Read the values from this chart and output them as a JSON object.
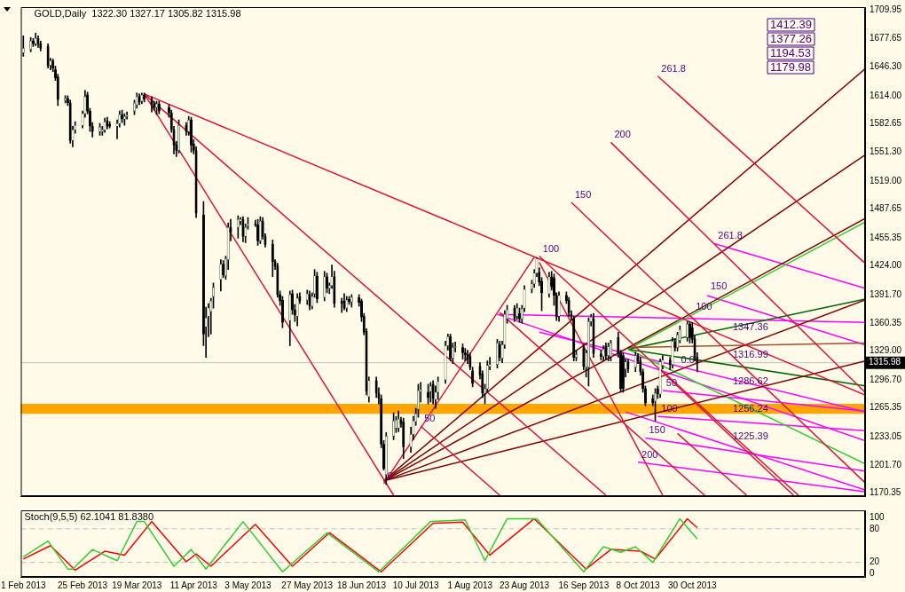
{
  "chart_data": [
    {
      "type": "candlestick",
      "title": "GOLD,Daily  1322.30 1327.17 1305.82 1315.98",
      "tick_labels": "y",
      "xlim": [
        "2013-01-31",
        "2014-01-08"
      ],
      "ylim": [
        1167,
        1713
      ],
      "yticks": [
        1709.95,
        1677.65,
        {
          "value": 1646.3,
          "label": "1646.30"
        },
        {
          "value": 1614,
          "label": "1614.00"
        },
        1582.65,
        {
          "value": 1551.3,
          "label": "1551.30"
        },
        {
          "value": 1519,
          "label": "1519.00"
        },
        1487.65,
        1455.35,
        {
          "value": 1424,
          "label": "1424.00"
        },
        {
          "value": 1391.7,
          "label": "1391.70"
        },
        1360.35,
        {
          "value": 1329,
          "label": "1329.00"
        },
        {
          "value": 1296.7,
          "label": "1296.70"
        },
        1265.35,
        1233.05,
        {
          "value": 1201.7,
          "label": "1201.70"
        },
        1170.35
      ],
      "x": [
        "2013-02-01",
        "2013-02-04",
        "2013-02-05",
        "2013-02-06",
        "2013-02-07",
        "2013-02-08",
        "2013-02-11",
        "2013-02-12",
        "2013-02-13",
        "2013-02-14",
        "2013-02-15",
        "2013-02-18",
        "2013-02-19",
        "2013-02-20",
        "2013-02-21",
        "2013-02-22",
        "2013-02-25",
        "2013-02-26",
        "2013-02-27",
        "2013-02-28",
        "2013-03-01",
        "2013-03-04",
        "2013-03-05",
        "2013-03-06",
        "2013-03-07",
        "2013-03-08",
        "2013-03-11",
        "2013-03-12",
        "2013-03-13",
        "2013-03-14",
        "2013-03-15",
        "2013-03-18",
        "2013-03-19",
        "2013-03-20",
        "2013-03-21",
        "2013-03-22",
        "2013-03-25",
        "2013-03-26",
        "2013-03-27",
        "2013-03-28",
        "2013-04-01",
        "2013-04-02",
        "2013-04-03",
        "2013-04-04",
        "2013-04-05",
        "2013-04-08",
        "2013-04-09",
        "2013-04-10",
        "2013-04-11",
        "2013-04-12",
        "2013-04-15",
        "2013-04-16",
        "2013-04-17",
        "2013-04-18",
        "2013-04-19",
        "2013-04-22",
        "2013-04-23",
        "2013-04-24",
        "2013-04-25",
        "2013-04-26",
        "2013-04-29",
        "2013-04-30",
        "2013-05-01",
        "2013-05-02",
        "2013-05-03",
        "2013-05-06",
        "2013-05-07",
        "2013-05-08",
        "2013-05-09",
        "2013-05-10",
        "2013-05-13",
        "2013-05-14",
        "2013-05-15",
        "2013-05-16",
        "2013-05-17",
        "2013-05-20",
        "2013-05-21",
        "2013-05-22",
        "2013-05-23",
        "2013-05-24",
        "2013-05-27",
        "2013-05-28",
        "2013-05-29",
        "2013-05-30",
        "2013-05-31",
        "2013-06-03",
        "2013-06-04",
        "2013-06-05",
        "2013-06-06",
        "2013-06-07",
        "2013-06-10",
        "2013-06-11",
        "2013-06-12",
        "2013-06-13",
        "2013-06-14",
        "2013-06-17",
        "2013-06-18",
        "2013-06-19",
        "2013-06-20",
        "2013-06-21",
        "2013-06-24",
        "2013-06-25",
        "2013-06-26",
        "2013-06-27",
        "2013-06-28",
        "2013-07-01",
        "2013-07-02",
        "2013-07-03",
        "2013-07-04",
        "2013-07-05",
        "2013-07-08",
        "2013-07-09",
        "2013-07-10",
        "2013-07-11",
        "2013-07-12",
        "2013-07-15",
        "2013-07-16",
        "2013-07-17",
        "2013-07-18",
        "2013-07-19",
        "2013-07-22",
        "2013-07-23",
        "2013-07-24",
        "2013-07-25",
        "2013-07-26",
        "2013-07-29",
        "2013-07-30",
        "2013-07-31",
        "2013-08-01",
        "2013-08-02",
        "2013-08-05",
        "2013-08-06",
        "2013-08-07",
        "2013-08-08",
        "2013-08-09",
        "2013-08-12",
        "2013-08-13",
        "2013-08-14",
        "2013-08-15",
        "2013-08-16",
        "2013-08-19",
        "2013-08-20",
        "2013-08-21",
        "2013-08-22",
        "2013-08-23",
        "2013-08-26",
        "2013-08-27",
        "2013-08-28",
        "2013-08-29",
        "2013-08-30",
        "2013-09-02",
        "2013-09-03",
        "2013-09-04",
        "2013-09-05",
        "2013-09-06",
        "2013-09-09",
        "2013-09-10",
        "2013-09-11",
        "2013-09-12",
        "2013-09-13",
        "2013-09-16",
        "2013-09-17",
        "2013-09-18",
        "2013-09-19",
        "2013-09-20",
        "2013-09-23",
        "2013-09-24",
        "2013-09-25",
        "2013-09-26",
        "2013-09-27",
        "2013-09-30",
        "2013-10-01",
        "2013-10-02",
        "2013-10-03",
        "2013-10-04",
        "2013-10-07",
        "2013-10-08",
        "2013-10-09",
        "2013-10-10",
        "2013-10-11",
        "2013-10-14",
        "2013-10-15",
        "2013-10-16",
        "2013-10-17",
        "2013-10-18",
        "2013-10-21",
        "2013-10-22",
        "2013-10-23",
        "2013-10-24",
        "2013-10-25",
        "2013-10-28",
        "2013-10-29",
        "2013-10-30",
        "2013-10-31",
        "2013-11-01"
      ],
      "ohlc": [
        [
          1662,
          1681,
          1658,
          1667
        ],
        [
          1666,
          1679,
          1663,
          1675
        ],
        [
          1675,
          1678,
          1669,
          1672
        ],
        [
          1672,
          1684,
          1670,
          1678
        ],
        [
          1678,
          1681,
          1668,
          1672
        ],
        [
          1672,
          1675,
          1664,
          1667
        ],
        [
          1669,
          1672,
          1645,
          1648
        ],
        [
          1648,
          1656,
          1643,
          1653
        ],
        [
          1653,
          1655,
          1641,
          1645
        ],
        [
          1643,
          1647,
          1631,
          1634
        ],
        [
          1635,
          1638,
          1603,
          1610
        ],
        [
          1609,
          1614,
          1606,
          1611
        ],
        [
          1611,
          1614,
          1603,
          1606
        ],
        [
          1606,
          1609,
          1561,
          1564
        ],
        [
          1564,
          1580,
          1557,
          1576
        ],
        [
          1576,
          1585,
          1572,
          1581
        ],
        [
          1581,
          1597,
          1578,
          1594
        ],
        [
          1594,
          1620,
          1590,
          1613
        ],
        [
          1615,
          1618,
          1594,
          1597
        ],
        [
          1597,
          1600,
          1574,
          1580
        ],
        [
          1580,
          1584,
          1568,
          1574
        ],
        [
          1574,
          1583,
          1570,
          1579
        ],
        [
          1574,
          1580,
          1570,
          1576
        ],
        [
          1576,
          1589,
          1573,
          1585
        ],
        [
          1586,
          1590,
          1577,
          1580
        ],
        [
          1582,
          1585,
          1578,
          1580
        ],
        [
          1580,
          1587,
          1566,
          1583
        ],
        [
          1583,
          1597,
          1579,
          1593
        ],
        [
          1593,
          1598,
          1584,
          1588
        ],
        [
          1588,
          1594,
          1581,
          1591
        ],
        [
          1591,
          1596,
          1588,
          1592
        ],
        [
          1597,
          1609,
          1593,
          1606
        ],
        [
          1604,
          1617,
          1600,
          1613
        ],
        [
          1613,
          1616,
          1604,
          1607
        ],
        [
          1608,
          1617,
          1605,
          1615
        ],
        [
          1615,
          1617,
          1607,
          1610
        ],
        [
          1610,
          1613,
          1596,
          1605
        ],
        [
          1605,
          1608,
          1598,
          1601
        ],
        [
          1601,
          1608,
          1593,
          1605
        ],
        [
          1605,
          1608,
          1594,
          1597
        ],
        [
          1601,
          1604,
          1590,
          1595
        ],
        [
          1595,
          1598,
          1573,
          1576
        ],
        [
          1576,
          1580,
          1549,
          1559
        ],
        [
          1559,
          1563,
          1546,
          1553
        ],
        [
          1553,
          1587,
          1550,
          1581
        ],
        [
          1581,
          1584,
          1570,
          1574
        ],
        [
          1574,
          1591,
          1570,
          1587
        ],
        [
          1587,
          1590,
          1551,
          1559
        ],
        [
          1560,
          1565,
          1549,
          1553
        ],
        [
          1553,
          1557,
          1478,
          1483
        ],
        [
          1481,
          1496,
          1335,
          1348
        ],
        [
          1356,
          1378,
          1322,
          1366
        ],
        [
          1368,
          1382,
          1345,
          1377
        ],
        [
          1373,
          1388,
          1348,
          1385
        ],
        [
          1390,
          1405,
          1377,
          1400
        ],
        [
          1409,
          1431,
          1396,
          1426
        ],
        [
          1426,
          1430,
          1411,
          1414
        ],
        [
          1413,
          1435,
          1409,
          1432
        ],
        [
          1431,
          1472,
          1420,
          1467
        ],
        [
          1467,
          1476,
          1452,
          1462
        ],
        [
          1467,
          1480,
          1455,
          1476
        ],
        [
          1474,
          1478,
          1470,
          1476
        ],
        [
          1476,
          1479,
          1451,
          1457
        ],
        [
          1457,
          1471,
          1450,
          1467
        ],
        [
          1469,
          1478,
          1465,
          1471
        ],
        [
          1471,
          1475,
          1468,
          1470
        ],
        [
          1470,
          1476,
          1447,
          1452
        ],
        [
          1452,
          1479,
          1449,
          1474
        ],
        [
          1474,
          1478,
          1454,
          1457
        ],
        [
          1457,
          1460,
          1445,
          1448
        ],
        [
          1448,
          1453,
          1412,
          1429
        ],
        [
          1429,
          1431,
          1420,
          1424
        ],
        [
          1424,
          1427,
          1389,
          1392
        ],
        [
          1392,
          1396,
          1380,
          1385
        ],
        [
          1386,
          1390,
          1355,
          1361
        ],
        [
          1363,
          1396,
          1335,
          1392
        ],
        [
          1393,
          1397,
          1370,
          1375
        ],
        [
          1375,
          1381,
          1362,
          1369
        ],
        [
          1368,
          1393,
          1357,
          1388
        ],
        [
          1390,
          1394,
          1382,
          1385
        ],
        [
          1386,
          1397,
          1381,
          1393
        ],
        [
          1392,
          1396,
          1375,
          1379
        ],
        [
          1379,
          1394,
          1376,
          1390
        ],
        [
          1393,
          1420,
          1389,
          1413
        ],
        [
          1413,
          1417,
          1383,
          1387
        ],
        [
          1389,
          1418,
          1385,
          1412
        ],
        [
          1412,
          1416,
          1394,
          1399
        ],
        [
          1399,
          1405,
          1393,
          1402
        ],
        [
          1402,
          1425,
          1399,
          1412
        ],
        [
          1412,
          1418,
          1378,
          1382
        ],
        [
          1385,
          1388,
          1372,
          1382
        ],
        [
          1385,
          1393,
          1375,
          1377
        ],
        [
          1377,
          1390,
          1373,
          1386
        ],
        [
          1387,
          1390,
          1381,
          1384
        ],
        [
          1384,
          1392,
          1378,
          1389
        ],
        [
          1389,
          1392,
          1379,
          1383
        ],
        [
          1385,
          1387,
          1362,
          1367
        ],
        [
          1368,
          1371,
          1347,
          1350
        ],
        [
          1351,
          1354,
          1280,
          1284
        ],
        [
          1278,
          1300,
          1272,
          1296
        ],
        [
          1296,
          1300,
          1277,
          1282
        ],
        [
          1282,
          1288,
          1270,
          1276
        ],
        [
          1276,
          1280,
          1221,
          1225
        ],
        [
          1225,
          1229,
          1196,
          1198
        ],
        [
          1191,
          1238,
          1180,
          1234
        ],
        [
          1234,
          1260,
          1230,
          1251
        ],
        [
          1243,
          1256,
          1238,
          1252
        ],
        [
          1243,
          1262,
          1239,
          1253
        ],
        [
          1252,
          1255,
          1244,
          1248
        ],
        [
          1250,
          1254,
          1209,
          1222
        ],
        [
          1222,
          1244,
          1216,
          1236
        ],
        [
          1236,
          1256,
          1230,
          1251
        ],
        [
          1250,
          1265,
          1246,
          1259
        ],
        [
          1264,
          1292,
          1255,
          1285
        ],
        [
          1284,
          1294,
          1272,
          1286
        ],
        [
          1283,
          1292,
          1270,
          1277
        ],
        [
          1284,
          1294,
          1272,
          1290
        ],
        [
          1292,
          1296,
          1270,
          1276
        ],
        [
          1275,
          1290,
          1265,
          1283
        ],
        [
          1283,
          1300,
          1275,
          1295
        ],
        [
          1297,
          1340,
          1293,
          1335
        ],
        [
          1335,
          1348,
          1330,
          1345
        ],
        [
          1345,
          1348,
          1318,
          1321
        ],
        [
          1321,
          1338,
          1315,
          1333
        ],
        [
          1333,
          1339,
          1328,
          1333
        ],
        [
          1333,
          1337,
          1320,
          1327
        ],
        [
          1327,
          1332,
          1318,
          1325
        ],
        [
          1325,
          1330,
          1315,
          1320
        ],
        [
          1323,
          1327,
          1308,
          1311
        ],
        [
          1307,
          1311,
          1289,
          1293
        ],
        [
          1312,
          1316,
          1298,
          1302
        ],
        [
          1304,
          1307,
          1277,
          1282
        ],
        [
          1282,
          1292,
          1270,
          1287
        ],
        [
          1287,
          1318,
          1283,
          1313
        ],
        [
          1312,
          1322,
          1308,
          1314
        ],
        [
          1314,
          1342,
          1310,
          1338
        ],
        [
          1336,
          1340,
          1318,
          1322
        ],
        [
          1321,
          1340,
          1316,
          1336
        ],
        [
          1336,
          1374,
          1332,
          1370
        ],
        [
          1365,
          1380,
          1360,
          1375
        ],
        [
          1377,
          1380,
          1362,
          1365
        ],
        [
          1368,
          1382,
          1364,
          1377
        ],
        [
          1371,
          1377,
          1361,
          1365
        ],
        [
          1365,
          1380,
          1360,
          1376
        ],
        [
          1377,
          1402,
          1373,
          1398
        ],
        [
          1398,
          1408,
          1394,
          1404
        ],
        [
          1404,
          1420,
          1400,
          1416
        ],
        [
          1416,
          1433,
          1412,
          1432
        ],
        [
          1417,
          1422,
          1402,
          1406
        ],
        [
          1407,
          1411,
          1374,
          1394
        ],
        [
          1393,
          1417,
          1389,
          1412
        ],
        [
          1412,
          1418,
          1397,
          1401
        ],
        [
          1411,
          1415,
          1380,
          1391
        ],
        [
          1391,
          1394,
          1363,
          1367
        ],
        [
          1368,
          1395,
          1362,
          1391
        ],
        [
          1391,
          1395,
          1382,
          1385
        ],
        [
          1386,
          1389,
          1368,
          1372
        ],
        [
          1370,
          1374,
          1364,
          1367
        ],
        [
          1365,
          1368,
          1318,
          1322
        ],
        [
          1322,
          1330,
          1318,
          1325
        ],
        [
          1333,
          1337,
          1308,
          1312
        ],
        [
          1311,
          1330,
          1300,
          1327
        ],
        [
          1311,
          1366,
          1290,
          1362
        ],
        [
          1362,
          1370,
          1357,
          1367
        ],
        [
          1365,
          1371,
          1322,
          1326
        ],
        [
          1326,
          1330,
          1319,
          1323
        ],
        [
          1323,
          1335,
          1318,
          1331
        ],
        [
          1335,
          1338,
          1320,
          1324
        ],
        [
          1324,
          1338,
          1318,
          1334
        ],
        [
          1323,
          1341,
          1318,
          1338
        ],
        [
          1344,
          1350,
          1322,
          1326
        ],
        [
          1327,
          1330,
          1283,
          1287
        ],
        [
          1324,
          1327,
          1283,
          1287
        ],
        [
          1309,
          1320,
          1300,
          1317
        ],
        [
          1317,
          1320,
          1305,
          1309
        ],
        [
          1311,
          1328,
          1306,
          1324
        ],
        [
          1322,
          1326,
          1315,
          1318
        ],
        [
          1318,
          1322,
          1302,
          1306
        ],
        [
          1306,
          1309,
          1283,
          1287
        ],
        [
          1287,
          1290,
          1268,
          1271
        ],
        [
          1276,
          1280,
          1268,
          1271
        ],
        [
          1273,
          1287,
          1251,
          1282
        ],
        [
          1287,
          1290,
          1276,
          1281
        ],
        [
          1281,
          1320,
          1277,
          1317
        ],
        [
          1313,
          1324,
          1309,
          1319
        ],
        [
          1319,
          1322,
          1308,
          1314
        ],
        [
          1314,
          1344,
          1310,
          1340
        ],
        [
          1339,
          1343,
          1329,
          1333
        ],
        [
          1333,
          1350,
          1329,
          1347
        ],
        [
          1341,
          1357,
          1338,
          1353
        ],
        [
          1344,
          1362,
          1340,
          1359
        ],
        [
          1359,
          1362,
          1338,
          1344
        ],
        [
          1355,
          1361,
          1338,
          1342
        ],
        [
          1342,
          1346,
          1318,
          1322
        ],
        [
          1322.3,
          1327.17,
          1305.82,
          1315.98
        ]
      ],
      "series": [
        {
          "type": "line",
          "color": "#dc143c",
          "x": [
            "2013-03-22",
            "2014-01-08"
          ],
          "values": [
            1616,
            1280
          ]
        },
        {
          "type": "line",
          "color": "#dc143c",
          "x": [
            "2013-03-22",
            "2013-07-01"
          ],
          "values": [
            1616,
            1168
          ]
        },
        {
          "type": "line",
          "color": "#dc143c",
          "x": [
            "2013-03-22",
            "2013-09-25"
          ],
          "values": [
            1616,
            1168
          ]
        },
        {
          "type": "line",
          "color": "#dc143c",
          "x": [
            "2013-06-27",
            "2013-08-27"
          ],
          "values": [
            1181,
            1434
          ]
        },
        {
          "type": "line",
          "color": "#dc143c",
          "x": [
            "2013-10-16",
            "2014-01-08"
          ],
          "values": [
            1636,
            1427
          ]
        },
        {
          "type": "line",
          "color": "#dc143c",
          "x": [
            "2013-09-27",
            "2014-01-08"
          ],
          "values": [
            1562,
            1283
          ]
        },
        {
          "type": "line",
          "color": "#dc143c",
          "x": [
            "2013-09-11",
            "2014-01-08"
          ],
          "values": [
            1495,
            1182
          ]
        },
        {
          "type": "line",
          "color": "#dc143c",
          "x": [
            "2013-08-29",
            "2013-12-10"
          ],
          "values": [
            1435,
            1168
          ]
        },
        {
          "type": "line",
          "color": "#dc143c",
          "x": [
            "2013-07-12",
            "2013-08-13"
          ],
          "values": [
            1245,
            1168
          ]
        },
        {
          "type": "line",
          "color": "#dc143c",
          "x": [
            "2013-08-13",
            "2013-11-04"
          ],
          "values": [
            1372,
            1168
          ]
        },
        {
          "type": "line",
          "color": "#dc143c",
          "x": [
            "2013-08-29",
            "2013-10-18"
          ],
          "values": [
            1428,
            1168
          ]
        },
        {
          "type": "line",
          "color": "#dc143c",
          "x": [
            "2013-10-17",
            "2013-12-12"
          ],
          "values": [
            1309,
            1168
          ]
        },
        {
          "type": "line",
          "color": "#dc143c",
          "x": [
            "2013-10-24",
            "2013-11-21"
          ],
          "values": [
            1237,
            1168
          ]
        },
        {
          "type": "line",
          "color": "#800000",
          "x": [
            "2013-06-27",
            "2014-01-08"
          ],
          "values": [
            1184,
            1644
          ]
        },
        {
          "type": "line",
          "color": "#800000",
          "x": [
            "2013-06-27",
            "2014-01-08"
          ],
          "values": [
            1184,
            1548
          ]
        },
        {
          "type": "line",
          "color": "#800000",
          "x": [
            "2013-06-27",
            "2014-01-08"
          ],
          "values": [
            1184,
            1477
          ]
        },
        {
          "type": "line",
          "color": "#800000",
          "x": [
            "2013-06-27",
            "2014-01-08"
          ],
          "values": [
            1184,
            1386
          ]
        },
        {
          "type": "line",
          "color": "#800000",
          "x": [
            "2013-06-27",
            "2014-01-08"
          ],
          "values": [
            1184,
            1318
          ]
        },
        {
          "type": "line",
          "color": "#a0522d",
          "x": [
            "2013-10-04",
            "2014-01-08"
          ],
          "values": [
            1333,
            1338
          ]
        },
        {
          "type": "line",
          "color": "#32cd32",
          "x": [
            "2013-10-04",
            "2014-01-08"
          ],
          "values": [
            1331,
            1473
          ]
        },
        {
          "type": "line",
          "color": "#006400",
          "x": [
            "2013-10-04",
            "2014-01-08"
          ],
          "values": [
            1331,
            1387
          ]
        },
        {
          "type": "line",
          "color": "#006400",
          "x": [
            "2013-10-04",
            "2014-01-08"
          ],
          "values": [
            1331,
            1290
          ]
        },
        {
          "type": "line",
          "color": "#32cd32",
          "x": [
            "2013-10-04",
            "2014-01-08"
          ],
          "values": [
            1331,
            1203
          ]
        },
        {
          "type": "line",
          "color": "#ff00ff",
          "x": [
            "2013-08-13",
            "2014-01-08"
          ],
          "values": [
            1370,
            1361
          ]
        },
        {
          "type": "line",
          "color": "#ff00ff",
          "x": [
            "2013-11-08",
            "2014-01-08"
          ],
          "values": [
            1449,
            1399
          ]
        },
        {
          "type": "line",
          "color": "#ff00ff",
          "x": [
            "2013-11-05",
            "2014-01-08"
          ],
          "values": [
            1391,
            1336
          ]
        },
        {
          "type": "line",
          "color": "#ff00ff",
          "x": [
            "2013-08-12",
            "2014-01-08"
          ],
          "values": [
            1370,
            1229
          ]
        },
        {
          "type": "line",
          "color": "#ff00ff",
          "x": [
            "2013-08-29",
            "2014-01-08"
          ],
          "values": [
            1350,
            1261
          ]
        },
        {
          "type": "line",
          "color": "#ff00ff",
          "x": [
            "2013-10-03",
            "2014-01-08"
          ],
          "values": [
            1261,
            1174
          ]
        },
        {
          "type": "line",
          "color": "#ff00ff",
          "x": [
            "2013-10-18",
            "2014-01-08"
          ],
          "values": [
            1285,
            1262
          ]
        },
        {
          "type": "line",
          "color": "#ff00ff",
          "x": [
            "2013-10-16",
            "2014-01-08"
          ],
          "values": [
            1256,
            1240
          ]
        },
        {
          "type": "line",
          "color": "#ff00ff",
          "x": [
            "2013-10-11",
            "2014-01-08"
          ],
          "values": [
            1232,
            1195
          ]
        },
        {
          "type": "line",
          "color": "#ff00ff",
          "x": [
            "2013-10-08",
            "2014-01-08"
          ],
          "values": [
            1205,
            1172
          ]
        }
      ],
      "ref_lines": [
        {
          "axis": "y",
          "value": 1315.98,
          "label": "1315.98",
          "color": "#c0c0c0"
        }
      ],
      "bands": [
        {
          "axis": "y",
          "from": 1259,
          "to": 1270,
          "color": "#ffa500"
        }
      ],
      "annotations": [
        "1412.39",
        "1377.26",
        {
          "text": "1347.36",
          "x": "2013-11-14",
          "y": 1347.36
        },
        {
          "text": "1316.99",
          "x": "2013-11-14",
          "y": 1316.99
        },
        {
          "text": "1286.62",
          "x": "2013-11-14",
          "y": 1286.62
        },
        {
          "text": "1256.24",
          "x": "2013-11-14",
          "y": 1256.24
        },
        {
          "text": "1225.39",
          "x": "2013-11-14",
          "y": 1225.39
        },
        "1194.53",
        "1179.98",
        {
          "text": "261.8",
          "x": "2013-10-16",
          "y": 1636
        },
        {
          "text": "200",
          "x": "2013-09-27",
          "y": 1562
        },
        {
          "text": "150",
          "x": "2013-09-11",
          "y": 1495
        },
        {
          "text": "100",
          "x": "2013-08-29",
          "y": 1435
        },
        {
          "text": "50",
          "x": "2013-07-12",
          "y": 1245
        },
        {
          "text": "0",
          "x": "2013-06-27",
          "y": 1181
        },
        {
          "text": "261.8",
          "x": "2013-11-08",
          "y": 1449
        },
        {
          "text": "150",
          "x": "2013-11-05",
          "y": 1393
        },
        {
          "text": "100",
          "x": "2013-10-30",
          "y": 1370
        },
        {
          "text": "0.0",
          "x": "2013-10-24",
          "y": 1311
        },
        {
          "text": "50",
          "x": "2013-10-18",
          "y": 1285
        },
        {
          "text": "100",
          "x": "2013-10-16",
          "y": 1256
        },
        {
          "text": "150",
          "x": "2013-10-11",
          "y": 1232
        },
        {
          "text": "200",
          "x": "2013-10-08",
          "y": 1205
        }
      ]
    },
    {
      "type": "line",
      "title": "Stoch(9,5,5) 62.1041 81.8380",
      "xlim": [
        "2013-01-31",
        "2014-01-08"
      ],
      "ylim": [
        -6,
        113
      ],
      "yticks": [
        0,
        20,
        80,
        100
      ],
      "xticks": [
        {
          "value": "2013-02-01",
          "label": "1 Feb 2013"
        },
        {
          "value": "2013-02-25",
          "label": "25 Feb 2013"
        },
        {
          "value": "2013-03-19",
          "label": "19 Mar 2013"
        },
        {
          "value": "2013-04-11",
          "label": "11 Apr 2013"
        },
        {
          "value": "2013-05-03",
          "label": "3 May 2013"
        },
        {
          "value": "2013-05-27",
          "label": "27 May 2013"
        },
        {
          "value": "2013-06-18",
          "label": "18 Jun 2013"
        },
        {
          "value": "2013-07-10",
          "label": "10 Jul 2013"
        },
        {
          "value": "2013-08-01",
          "label": "1 Aug 2013"
        },
        {
          "value": "2013-08-23",
          "label": "23 Aug 2013"
        },
        {
          "value": "2013-09-16",
          "label": "16 Sep 2013"
        },
        {
          "value": "2013-10-08",
          "label": "8 Oct 2013"
        },
        {
          "value": "2013-10-30",
          "label": "30 Oct 2013"
        }
      ],
      "series": [
        {
          "color": "#32cd32",
          "x": [
            "2013-02-01",
            "2013-02-11",
            "2013-02-19",
            "2013-02-21",
            "2013-03-01",
            "2013-03-11",
            "2013-03-19",
            "2013-03-22",
            "2013-04-03",
            "2013-04-10",
            "2013-04-16",
            "2013-05-01",
            "2013-05-17",
            "2013-06-04",
            "2013-06-25",
            "2013-07-16",
            "2013-07-30",
            "2013-08-07",
            "2013-08-16",
            "2013-08-28",
            "2013-09-16",
            "2013-09-24",
            "2013-10-01",
            "2013-10-07",
            "2013-10-14",
            "2013-10-25",
            "2013-11-01"
          ],
          "values": [
            30,
            58,
            8,
            8,
            43,
            23,
            93,
            93,
            13,
            43,
            8,
            93,
            3,
            73,
            3,
            93,
            96,
            23,
            98,
            98,
            3,
            48,
            38,
            48,
            20,
            98,
            62
          ]
        },
        {
          "color": "#ff0000",
          "x": [
            "2013-02-01",
            "2013-02-12",
            "2013-02-22",
            "2013-03-06",
            "2013-03-14",
            "2013-03-25",
            "2013-04-08",
            "2013-04-12",
            "2013-04-18",
            "2013-05-06",
            "2013-05-21",
            "2013-06-05",
            "2013-06-26",
            "2013-07-17",
            "2013-07-29",
            "2013-08-09",
            "2013-08-27",
            "2013-09-17",
            "2013-09-27",
            "2013-10-09",
            "2013-10-15",
            "2013-10-28",
            "2013-11-01"
          ],
          "values": [
            26,
            50,
            6,
            40,
            33,
            93,
            21,
            35,
            13,
            88,
            13,
            73,
            3,
            90,
            92,
            33,
            98,
            8,
            43,
            40,
            26,
            98,
            82
          ]
        }
      ],
      "ref_lines": [
        {
          "axis": "y",
          "value": 80,
          "color": "#c0c0c0",
          "line_style": "dashed"
        },
        {
          "axis": "y",
          "value": 20,
          "color": "#c0c0c0",
          "line_style": "dashed"
        }
      ]
    }
  ]
}
